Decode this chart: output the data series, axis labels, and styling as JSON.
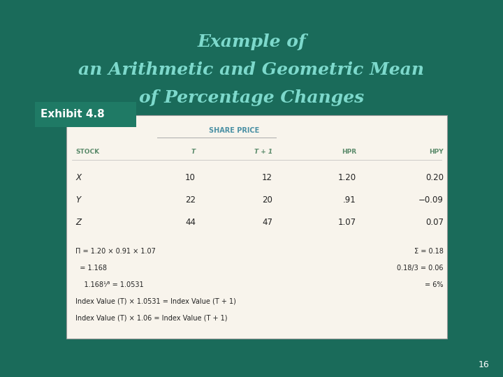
{
  "bg_color": "#1a6b5a",
  "title_lines": [
    "Example of",
    "an Arithmetic and Geometric Mean",
    "of Percentage Changes"
  ],
  "title_color": "#7dd9cc",
  "title_fontsize": 18,
  "exhibit_label": "Exhibit 4.8",
  "exhibit_bg": "#1f7a65",
  "exhibit_text_color": "#ffffff",
  "table_bg": "#f8f4ec",
  "table_border_color": "#999999",
  "share_price_header": "SHARE PRICE",
  "share_price_color": "#4a90a4",
  "col_header_color": "#5a8a6a",
  "col_headers_display": [
    "STOCK",
    "T",
    "T + 1",
    "HPR",
    "HPY"
  ],
  "col_headers_italic": [
    false,
    true,
    true,
    false,
    false
  ],
  "rows": [
    [
      "X",
      "10",
      "12",
      "1.20",
      "0.20"
    ],
    [
      "Y",
      "22",
      "20",
      ".91",
      "−0.09"
    ],
    [
      "Z",
      "44",
      "47",
      "1.07",
      "0.07"
    ]
  ],
  "formula_left": [
    "Π = 1.20 × 0.91 × 1.07",
    "  = 1.168",
    "    1.168¹⁄³ = 1.0531",
    "Index Value (T) × 1.0531 = Index Value (T + 1)",
    "Index Value (T) × 1.06 = Index Value (T + 1)"
  ],
  "formula_right": [
    "Σ = 0.18",
    "0.18/3 = 0.06",
    "= 6%",
    "",
    ""
  ],
  "page_number": "16",
  "page_num_color": "#ffffff"
}
